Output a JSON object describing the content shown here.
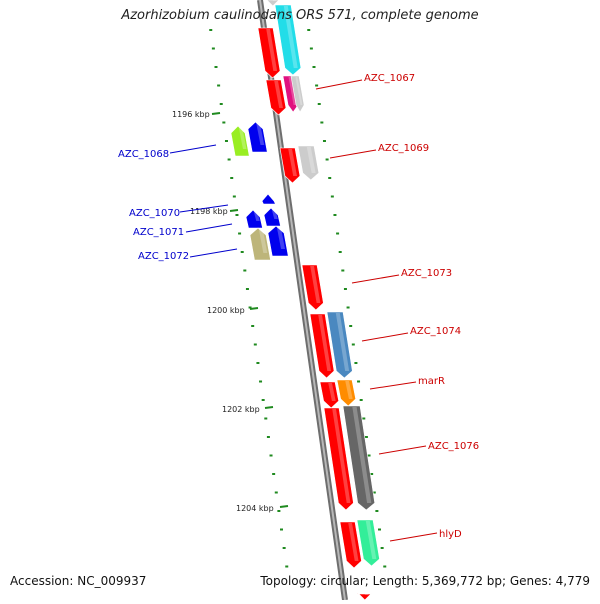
{
  "title": "Azorhizobium caulinodans ORS 571, complete genome",
  "accession_label": "Accession: NC_009937",
  "topology": "Topology: circular; Length: 5,369,772 bp; Genes: 4,779",
  "colors": {
    "backbone": "#8c8c8c",
    "tick": "#1f8a1f",
    "forward_label": "#cc0000",
    "reverse_label": "#0000cc",
    "gene_red": "#ff0000",
    "gene_blue": "#0000ee"
  },
  "scale_labels": [
    {
      "text": "1196 kbp",
      "kbp": 1196
    },
    {
      "text": "1198 kbp",
      "kbp": 1198
    },
    {
      "text": "1200 kbp",
      "kbp": 1200
    },
    {
      "text": "1202 kbp",
      "kbp": 1202
    },
    {
      "text": "1204 kbp",
      "kbp": 1204
    }
  ],
  "forward_genes": [
    {
      "name": "AZC_1067"
    },
    {
      "name": "AZC_1069"
    },
    {
      "name": "AZC_1073"
    },
    {
      "name": "AZC_1074"
    },
    {
      "name": "marR"
    },
    {
      "name": "AZC_1076"
    },
    {
      "name": "hlyD"
    }
  ],
  "reverse_genes": [
    {
      "name": "AZC_1068"
    },
    {
      "name": "AZC_1070"
    },
    {
      "name": "AZC_1071"
    },
    {
      "name": "AZC_1072"
    }
  ]
}
